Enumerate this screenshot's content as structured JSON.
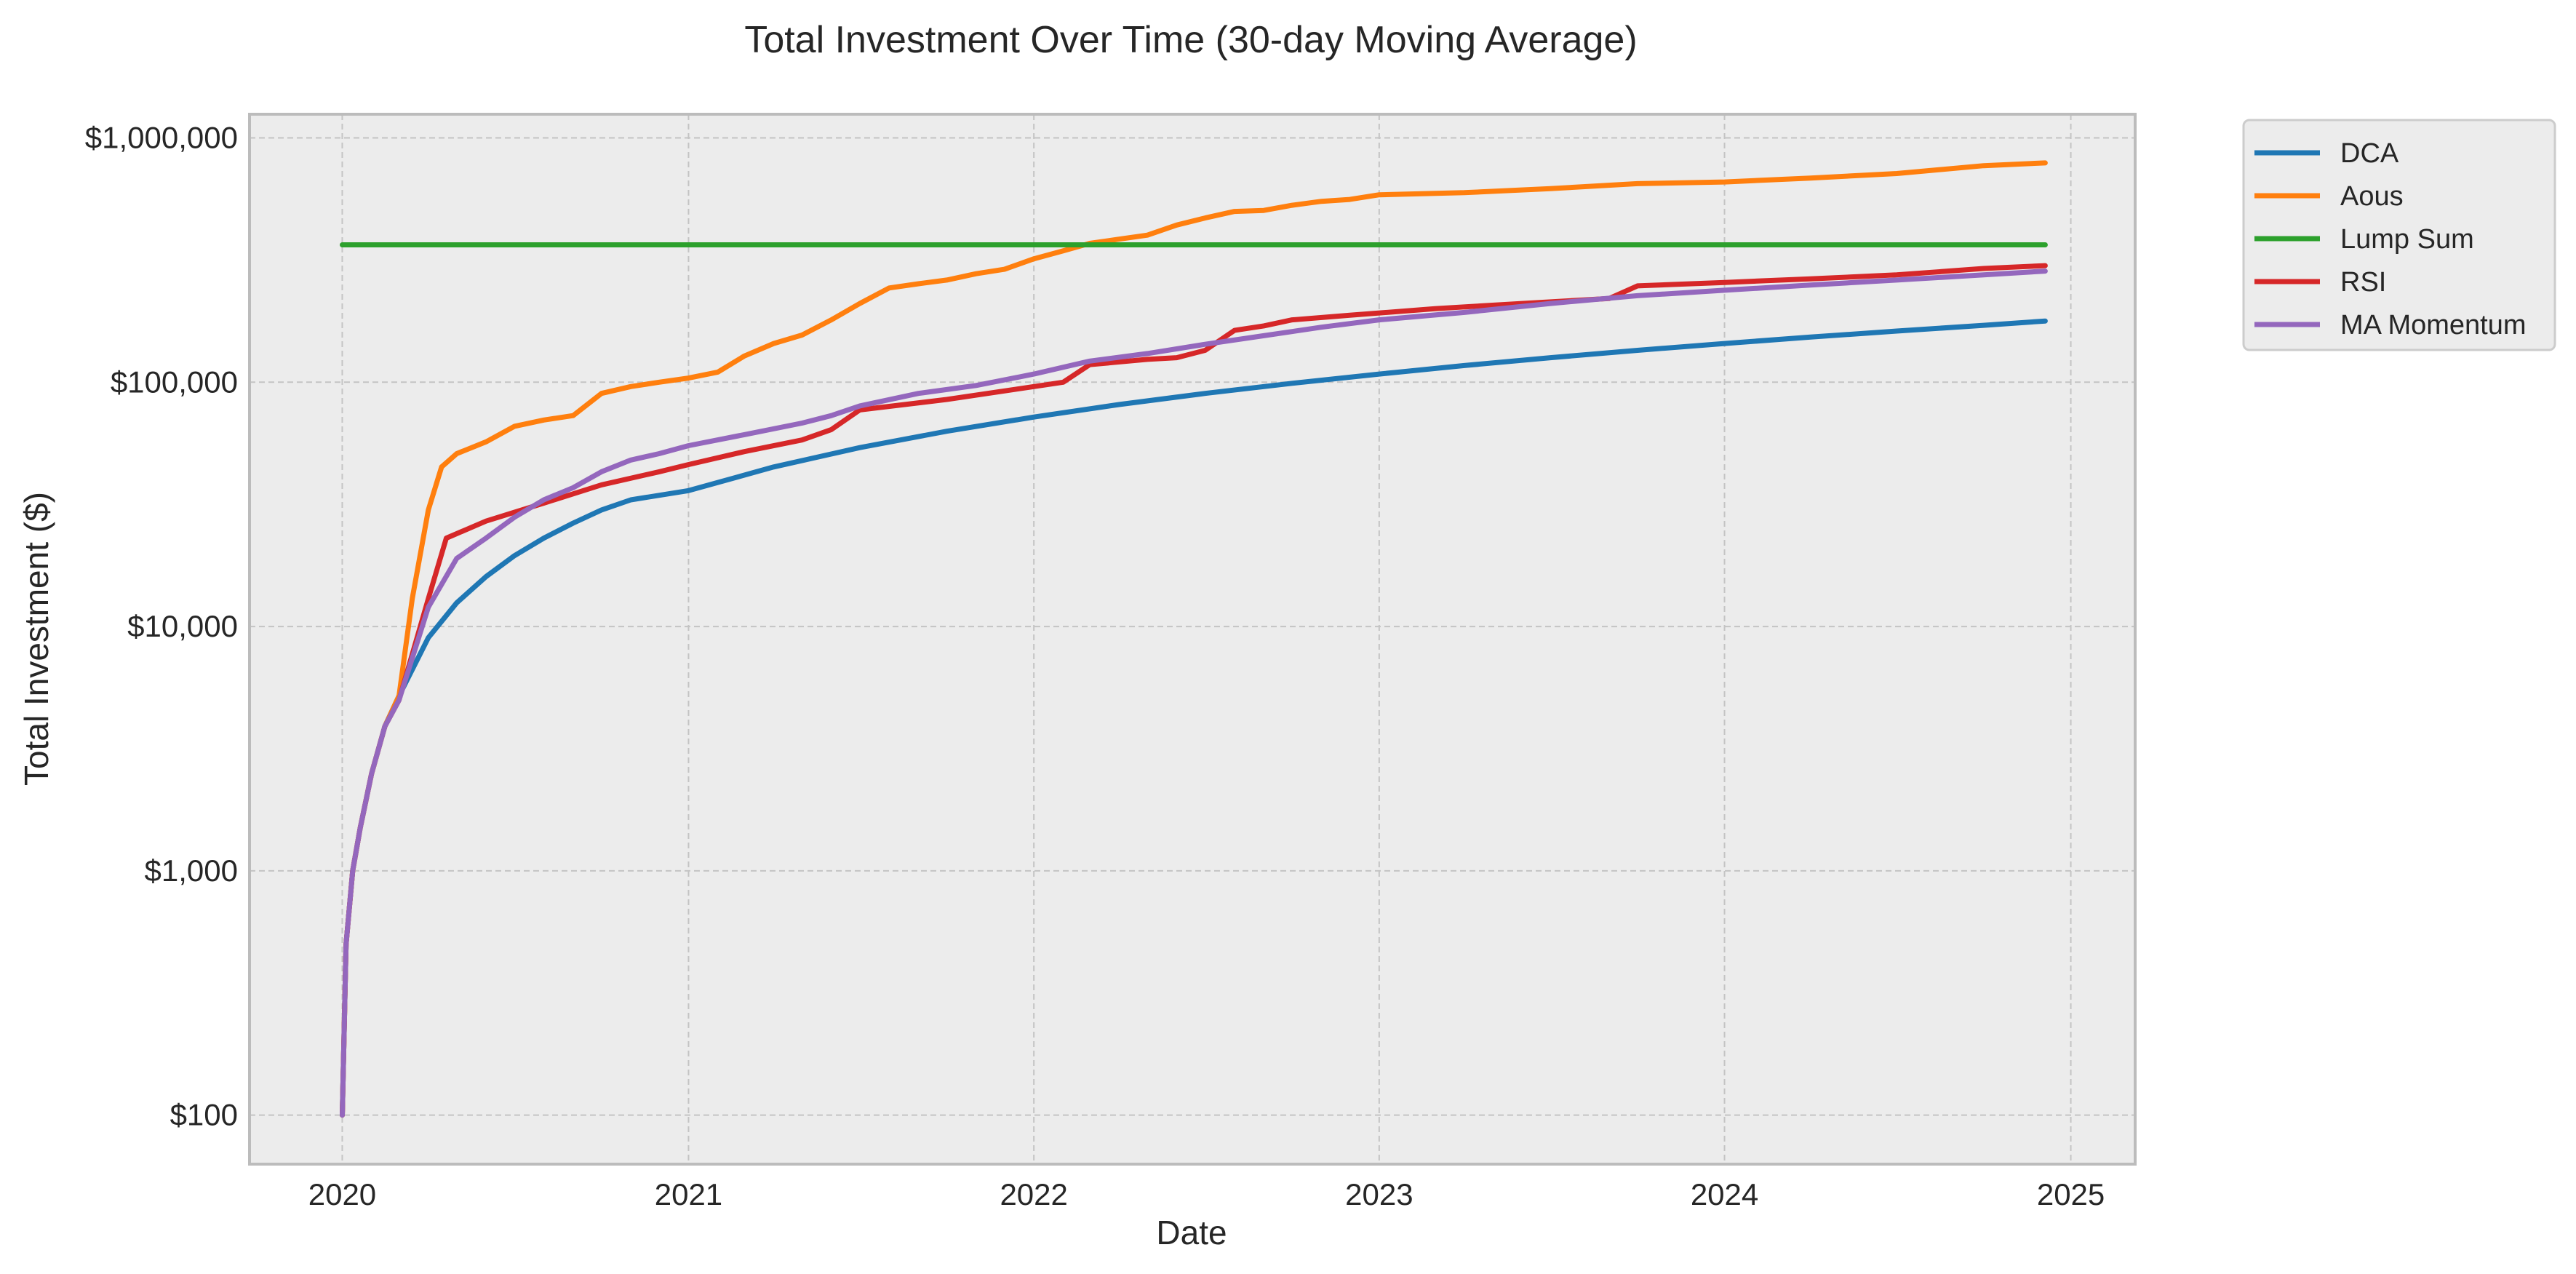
{
  "chart_data": {
    "type": "line",
    "title": "Total Investment Over Time (30-day Moving Average)",
    "xlabel": "Date",
    "ylabel": "Total Investment ($)",
    "yscale": "log",
    "ylim": [
      63,
      1250000
    ],
    "xlim": [
      "2019-09-25",
      "2025-03-10"
    ],
    "x_ticks": [
      {
        "date": "2020-01-01",
        "label": "2020"
      },
      {
        "date": "2021-01-01",
        "label": "2021"
      },
      {
        "date": "2022-01-01",
        "label": "2022"
      },
      {
        "date": "2023-01-01",
        "label": "2023"
      },
      {
        "date": "2024-01-01",
        "label": "2024"
      },
      {
        "date": "2025-01-01",
        "label": "2025"
      }
    ],
    "y_ticks": [
      {
        "value": 100,
        "label": "$100"
      },
      {
        "value": 1000,
        "label": "$1,000"
      },
      {
        "value": 10000,
        "label": "$10,000"
      },
      {
        "value": 100000,
        "label": "$100,000"
      },
      {
        "value": 1000000,
        "label": "$1,000,000"
      }
    ],
    "grid": true,
    "legend_position": "outside-top-right",
    "series": [
      {
        "name": "DCA",
        "color": "#1f77b4",
        "points": [
          [
            "2020-01-01",
            100
          ],
          [
            "2020-01-05",
            500
          ],
          [
            "2020-01-12",
            1000
          ],
          [
            "2020-01-20",
            1500
          ],
          [
            "2020-02-01",
            2500
          ],
          [
            "2020-02-15",
            3900
          ],
          [
            "2020-03-01",
            5200
          ],
          [
            "2020-04-01",
            9000
          ],
          [
            "2020-05-01",
            12500
          ],
          [
            "2020-06-01",
            16000
          ],
          [
            "2020-07-01",
            19500
          ],
          [
            "2020-08-01",
            23000
          ],
          [
            "2020-09-01",
            26500
          ],
          [
            "2020-10-01",
            30000
          ],
          [
            "2020-11-01",
            33000
          ],
          [
            "2021-01-01",
            36000
          ],
          [
            "2021-04-01",
            45000
          ],
          [
            "2021-07-01",
            54000
          ],
          [
            "2021-10-01",
            63000
          ],
          [
            "2022-01-01",
            72000
          ],
          [
            "2022-04-01",
            81000
          ],
          [
            "2022-07-01",
            90000
          ],
          [
            "2022-10-01",
            99000
          ],
          [
            "2023-01-01",
            108000
          ],
          [
            "2023-04-01",
            117000
          ],
          [
            "2023-07-01",
            126000
          ],
          [
            "2023-10-01",
            135000
          ],
          [
            "2024-01-01",
            144000
          ],
          [
            "2024-04-01",
            153000
          ],
          [
            "2024-07-01",
            162000
          ],
          [
            "2024-10-01",
            171000
          ],
          [
            "2024-12-05",
            178000
          ]
        ]
      },
      {
        "name": "Aous",
        "color": "#ff7f0e",
        "points": [
          [
            "2020-01-01",
            100
          ],
          [
            "2020-01-05",
            500
          ],
          [
            "2020-01-12",
            1000
          ],
          [
            "2020-01-20",
            1500
          ],
          [
            "2020-02-01",
            2500
          ],
          [
            "2020-02-15",
            3900
          ],
          [
            "2020-03-01",
            5200
          ],
          [
            "2020-03-15",
            13000
          ],
          [
            "2020-04-01",
            30000
          ],
          [
            "2020-04-15",
            45000
          ],
          [
            "2020-05-01",
            51000
          ],
          [
            "2020-06-01",
            57000
          ],
          [
            "2020-07-01",
            66000
          ],
          [
            "2020-08-01",
            70000
          ],
          [
            "2020-09-01",
            73000
          ],
          [
            "2020-10-01",
            90000
          ],
          [
            "2020-11-01",
            96000
          ],
          [
            "2020-12-01",
            100000
          ],
          [
            "2021-01-01",
            104000
          ],
          [
            "2021-02-01",
            110000
          ],
          [
            "2021-03-01",
            128000
          ],
          [
            "2021-04-01",
            144000
          ],
          [
            "2021-05-01",
            156000
          ],
          [
            "2021-06-01",
            180000
          ],
          [
            "2021-07-01",
            210000
          ],
          [
            "2021-08-01",
            243000
          ],
          [
            "2021-09-01",
            253000
          ],
          [
            "2021-10-01",
            262000
          ],
          [
            "2021-11-01",
            278000
          ],
          [
            "2021-12-01",
            290000
          ],
          [
            "2022-01-01",
            320000
          ],
          [
            "2022-02-01",
            345000
          ],
          [
            "2022-03-01",
            370000
          ],
          [
            "2022-04-01",
            385000
          ],
          [
            "2022-05-01",
            400000
          ],
          [
            "2022-06-01",
            440000
          ],
          [
            "2022-07-01",
            470000
          ],
          [
            "2022-08-01",
            500000
          ],
          [
            "2022-09-01",
            505000
          ],
          [
            "2022-10-01",
            530000
          ],
          [
            "2022-11-01",
            550000
          ],
          [
            "2022-12-01",
            560000
          ],
          [
            "2023-01-01",
            585000
          ],
          [
            "2023-04-01",
            597000
          ],
          [
            "2023-07-01",
            620000
          ],
          [
            "2023-10-01",
            650000
          ],
          [
            "2024-01-01",
            660000
          ],
          [
            "2024-04-01",
            685000
          ],
          [
            "2024-07-01",
            715000
          ],
          [
            "2024-10-01",
            770000
          ],
          [
            "2024-12-05",
            790000
          ]
        ]
      },
      {
        "name": "Lump Sum",
        "color": "#2ca02c",
        "points": [
          [
            "2020-01-01",
            365000
          ],
          [
            "2024-12-05",
            365000
          ]
        ]
      },
      {
        "name": "RSI",
        "color": "#d62728",
        "points": [
          [
            "2020-01-01",
            100
          ],
          [
            "2020-01-05",
            500
          ],
          [
            "2020-01-12",
            1000
          ],
          [
            "2020-01-20",
            1500
          ],
          [
            "2020-02-01",
            2500
          ],
          [
            "2020-02-15",
            3900
          ],
          [
            "2020-03-01",
            5000
          ],
          [
            "2020-04-01",
            13000
          ],
          [
            "2020-04-20",
            23000
          ],
          [
            "2020-06-01",
            27000
          ],
          [
            "2020-08-01",
            32000
          ],
          [
            "2020-10-01",
            38000
          ],
          [
            "2020-12-01",
            43000
          ],
          [
            "2021-01-01",
            46000
          ],
          [
            "2021-03-01",
            52000
          ],
          [
            "2021-05-01",
            58000
          ],
          [
            "2021-06-01",
            64000
          ],
          [
            "2021-07-01",
            77000
          ],
          [
            "2021-10-01",
            85000
          ],
          [
            "2022-01-01",
            96000
          ],
          [
            "2022-02-01",
            100000
          ],
          [
            "2022-03-01",
            118000
          ],
          [
            "2022-05-01",
            124000
          ],
          [
            "2022-06-01",
            126000
          ],
          [
            "2022-07-01",
            135000
          ],
          [
            "2022-08-01",
            163000
          ],
          [
            "2022-09-01",
            170000
          ],
          [
            "2022-10-01",
            180000
          ],
          [
            "2022-12-01",
            188000
          ],
          [
            "2023-03-01",
            200000
          ],
          [
            "2023-06-01",
            210000
          ],
          [
            "2023-09-01",
            220000
          ],
          [
            "2023-10-01",
            248000
          ],
          [
            "2024-01-01",
            256000
          ],
          [
            "2024-04-01",
            265000
          ],
          [
            "2024-07-01",
            275000
          ],
          [
            "2024-10-01",
            292000
          ],
          [
            "2024-12-05",
            300000
          ]
        ]
      },
      {
        "name": "MA Momentum",
        "color": "#9467bd",
        "points": [
          [
            "2020-01-01",
            100
          ],
          [
            "2020-01-05",
            500
          ],
          [
            "2020-01-12",
            1000
          ],
          [
            "2020-01-20",
            1500
          ],
          [
            "2020-02-01",
            2500
          ],
          [
            "2020-02-15",
            3900
          ],
          [
            "2020-03-01",
            5000
          ],
          [
            "2020-04-01",
            12000
          ],
          [
            "2020-05-01",
            19000
          ],
          [
            "2020-06-01",
            23000
          ],
          [
            "2020-07-01",
            28000
          ],
          [
            "2020-08-01",
            33000
          ],
          [
            "2020-09-01",
            37000
          ],
          [
            "2020-10-01",
            43000
          ],
          [
            "2020-11-01",
            48000
          ],
          [
            "2020-12-01",
            51000
          ],
          [
            "2021-01-01",
            55000
          ],
          [
            "2021-03-01",
            61000
          ],
          [
            "2021-05-01",
            68000
          ],
          [
            "2021-06-01",
            73000
          ],
          [
            "2021-07-01",
            80000
          ],
          [
            "2021-09-01",
            90000
          ],
          [
            "2021-11-01",
            97000
          ],
          [
            "2022-01-01",
            108000
          ],
          [
            "2022-03-01",
            122000
          ],
          [
            "2022-05-01",
            131000
          ],
          [
            "2022-07-01",
            143000
          ],
          [
            "2022-09-01",
            155000
          ],
          [
            "2022-11-01",
            168000
          ],
          [
            "2023-01-01",
            180000
          ],
          [
            "2023-04-01",
            193000
          ],
          [
            "2023-07-01",
            210000
          ],
          [
            "2023-10-01",
            226000
          ],
          [
            "2024-01-01",
            238000
          ],
          [
            "2024-04-01",
            250000
          ],
          [
            "2024-07-01",
            262000
          ],
          [
            "2024-10-01",
            275000
          ],
          [
            "2024-12-05",
            285000
          ]
        ]
      }
    ]
  }
}
